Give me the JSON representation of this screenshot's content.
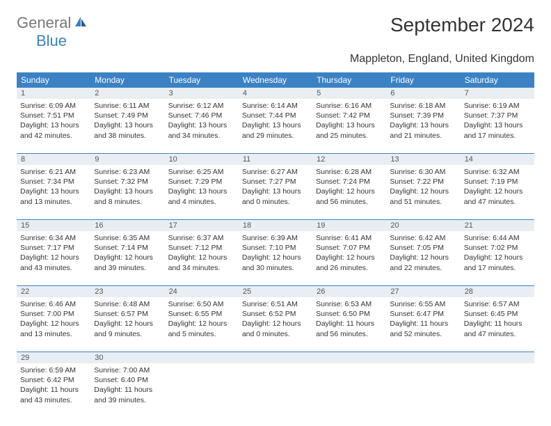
{
  "logo": {
    "part1": "General",
    "part2": "Blue"
  },
  "title": "September 2024",
  "location": "Mappleton, England, United Kingdom",
  "day_headers": [
    "Sunday",
    "Monday",
    "Tuesday",
    "Wednesday",
    "Thursday",
    "Friday",
    "Saturday"
  ],
  "colors": {
    "brand_blue": "#3b82c4",
    "header_bg": "#3b82c4",
    "num_row_bg": "#e8eef3",
    "text": "#333333"
  },
  "weeks": [
    [
      {
        "n": "1",
        "sr": "6:09 AM",
        "ss": "7:51 PM",
        "dl": "13 hours and 42 minutes."
      },
      {
        "n": "2",
        "sr": "6:11 AM",
        "ss": "7:49 PM",
        "dl": "13 hours and 38 minutes."
      },
      {
        "n": "3",
        "sr": "6:12 AM",
        "ss": "7:46 PM",
        "dl": "13 hours and 34 minutes."
      },
      {
        "n": "4",
        "sr": "6:14 AM",
        "ss": "7:44 PM",
        "dl": "13 hours and 29 minutes."
      },
      {
        "n": "5",
        "sr": "6:16 AM",
        "ss": "7:42 PM",
        "dl": "13 hours and 25 minutes."
      },
      {
        "n": "6",
        "sr": "6:18 AM",
        "ss": "7:39 PM",
        "dl": "13 hours and 21 minutes."
      },
      {
        "n": "7",
        "sr": "6:19 AM",
        "ss": "7:37 PM",
        "dl": "13 hours and 17 minutes."
      }
    ],
    [
      {
        "n": "8",
        "sr": "6:21 AM",
        "ss": "7:34 PM",
        "dl": "13 hours and 13 minutes."
      },
      {
        "n": "9",
        "sr": "6:23 AM",
        "ss": "7:32 PM",
        "dl": "13 hours and 8 minutes."
      },
      {
        "n": "10",
        "sr": "6:25 AM",
        "ss": "7:29 PM",
        "dl": "13 hours and 4 minutes."
      },
      {
        "n": "11",
        "sr": "6:27 AM",
        "ss": "7:27 PM",
        "dl": "13 hours and 0 minutes."
      },
      {
        "n": "12",
        "sr": "6:28 AM",
        "ss": "7:24 PM",
        "dl": "12 hours and 56 minutes."
      },
      {
        "n": "13",
        "sr": "6:30 AM",
        "ss": "7:22 PM",
        "dl": "12 hours and 51 minutes."
      },
      {
        "n": "14",
        "sr": "6:32 AM",
        "ss": "7:19 PM",
        "dl": "12 hours and 47 minutes."
      }
    ],
    [
      {
        "n": "15",
        "sr": "6:34 AM",
        "ss": "7:17 PM",
        "dl": "12 hours and 43 minutes."
      },
      {
        "n": "16",
        "sr": "6:35 AM",
        "ss": "7:14 PM",
        "dl": "12 hours and 39 minutes."
      },
      {
        "n": "17",
        "sr": "6:37 AM",
        "ss": "7:12 PM",
        "dl": "12 hours and 34 minutes."
      },
      {
        "n": "18",
        "sr": "6:39 AM",
        "ss": "7:10 PM",
        "dl": "12 hours and 30 minutes."
      },
      {
        "n": "19",
        "sr": "6:41 AM",
        "ss": "7:07 PM",
        "dl": "12 hours and 26 minutes."
      },
      {
        "n": "20",
        "sr": "6:42 AM",
        "ss": "7:05 PM",
        "dl": "12 hours and 22 minutes."
      },
      {
        "n": "21",
        "sr": "6:44 AM",
        "ss": "7:02 PM",
        "dl": "12 hours and 17 minutes."
      }
    ],
    [
      {
        "n": "22",
        "sr": "6:46 AM",
        "ss": "7:00 PM",
        "dl": "12 hours and 13 minutes."
      },
      {
        "n": "23",
        "sr": "6:48 AM",
        "ss": "6:57 PM",
        "dl": "12 hours and 9 minutes."
      },
      {
        "n": "24",
        "sr": "6:50 AM",
        "ss": "6:55 PM",
        "dl": "12 hours and 5 minutes."
      },
      {
        "n": "25",
        "sr": "6:51 AM",
        "ss": "6:52 PM",
        "dl": "12 hours and 0 minutes."
      },
      {
        "n": "26",
        "sr": "6:53 AM",
        "ss": "6:50 PM",
        "dl": "11 hours and 56 minutes."
      },
      {
        "n": "27",
        "sr": "6:55 AM",
        "ss": "6:47 PM",
        "dl": "11 hours and 52 minutes."
      },
      {
        "n": "28",
        "sr": "6:57 AM",
        "ss": "6:45 PM",
        "dl": "11 hours and 47 minutes."
      }
    ],
    [
      {
        "n": "29",
        "sr": "6:59 AM",
        "ss": "6:42 PM",
        "dl": "11 hours and 43 minutes."
      },
      {
        "n": "30",
        "sr": "7:00 AM",
        "ss": "6:40 PM",
        "dl": "11 hours and 39 minutes."
      },
      {
        "n": "",
        "sr": "",
        "ss": "",
        "dl": ""
      },
      {
        "n": "",
        "sr": "",
        "ss": "",
        "dl": ""
      },
      {
        "n": "",
        "sr": "",
        "ss": "",
        "dl": ""
      },
      {
        "n": "",
        "sr": "",
        "ss": "",
        "dl": ""
      },
      {
        "n": "",
        "sr": "",
        "ss": "",
        "dl": ""
      }
    ]
  ],
  "labels": {
    "sunrise": "Sunrise: ",
    "sunset": "Sunset: ",
    "daylight": "Daylight: "
  }
}
